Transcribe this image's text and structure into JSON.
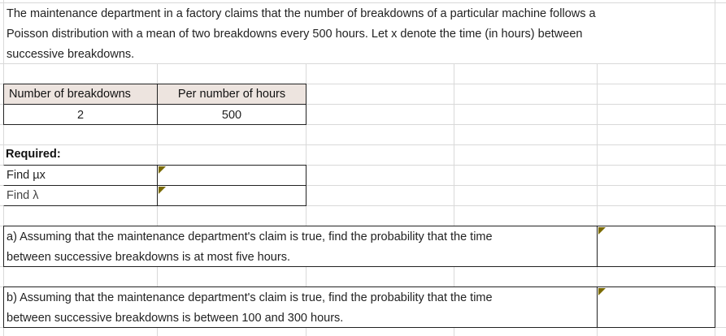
{
  "intro": {
    "lines": [
      "The maintenance department in a factory claims that the number of breakdowns of a particular machine follows a",
      "Poisson distribution with a mean of two breakdowns every 500 hours. Let x denote the time (in hours) between",
      "successive breakdowns."
    ]
  },
  "table": {
    "headers": [
      "Number of breakdowns",
      "Per number of hours"
    ],
    "values": [
      "2",
      "500"
    ]
  },
  "required": {
    "title": "Required:",
    "items": [
      "Find µx",
      "Find λ"
    ]
  },
  "questions": [
    {
      "lines": [
        "a) Assuming that the maintenance department's claim is true, find the probability that the time",
        "between successive breakdowns is at most five hours."
      ]
    },
    {
      "lines": [
        "b) Assuming that the maintenance department's claim is true, find the probability that the time",
        "between successive breakdowns is between 100 and 300 hours."
      ]
    }
  ],
  "colors": {
    "header_bg": "#ede4df",
    "comment_marker": "#7a6a00"
  }
}
